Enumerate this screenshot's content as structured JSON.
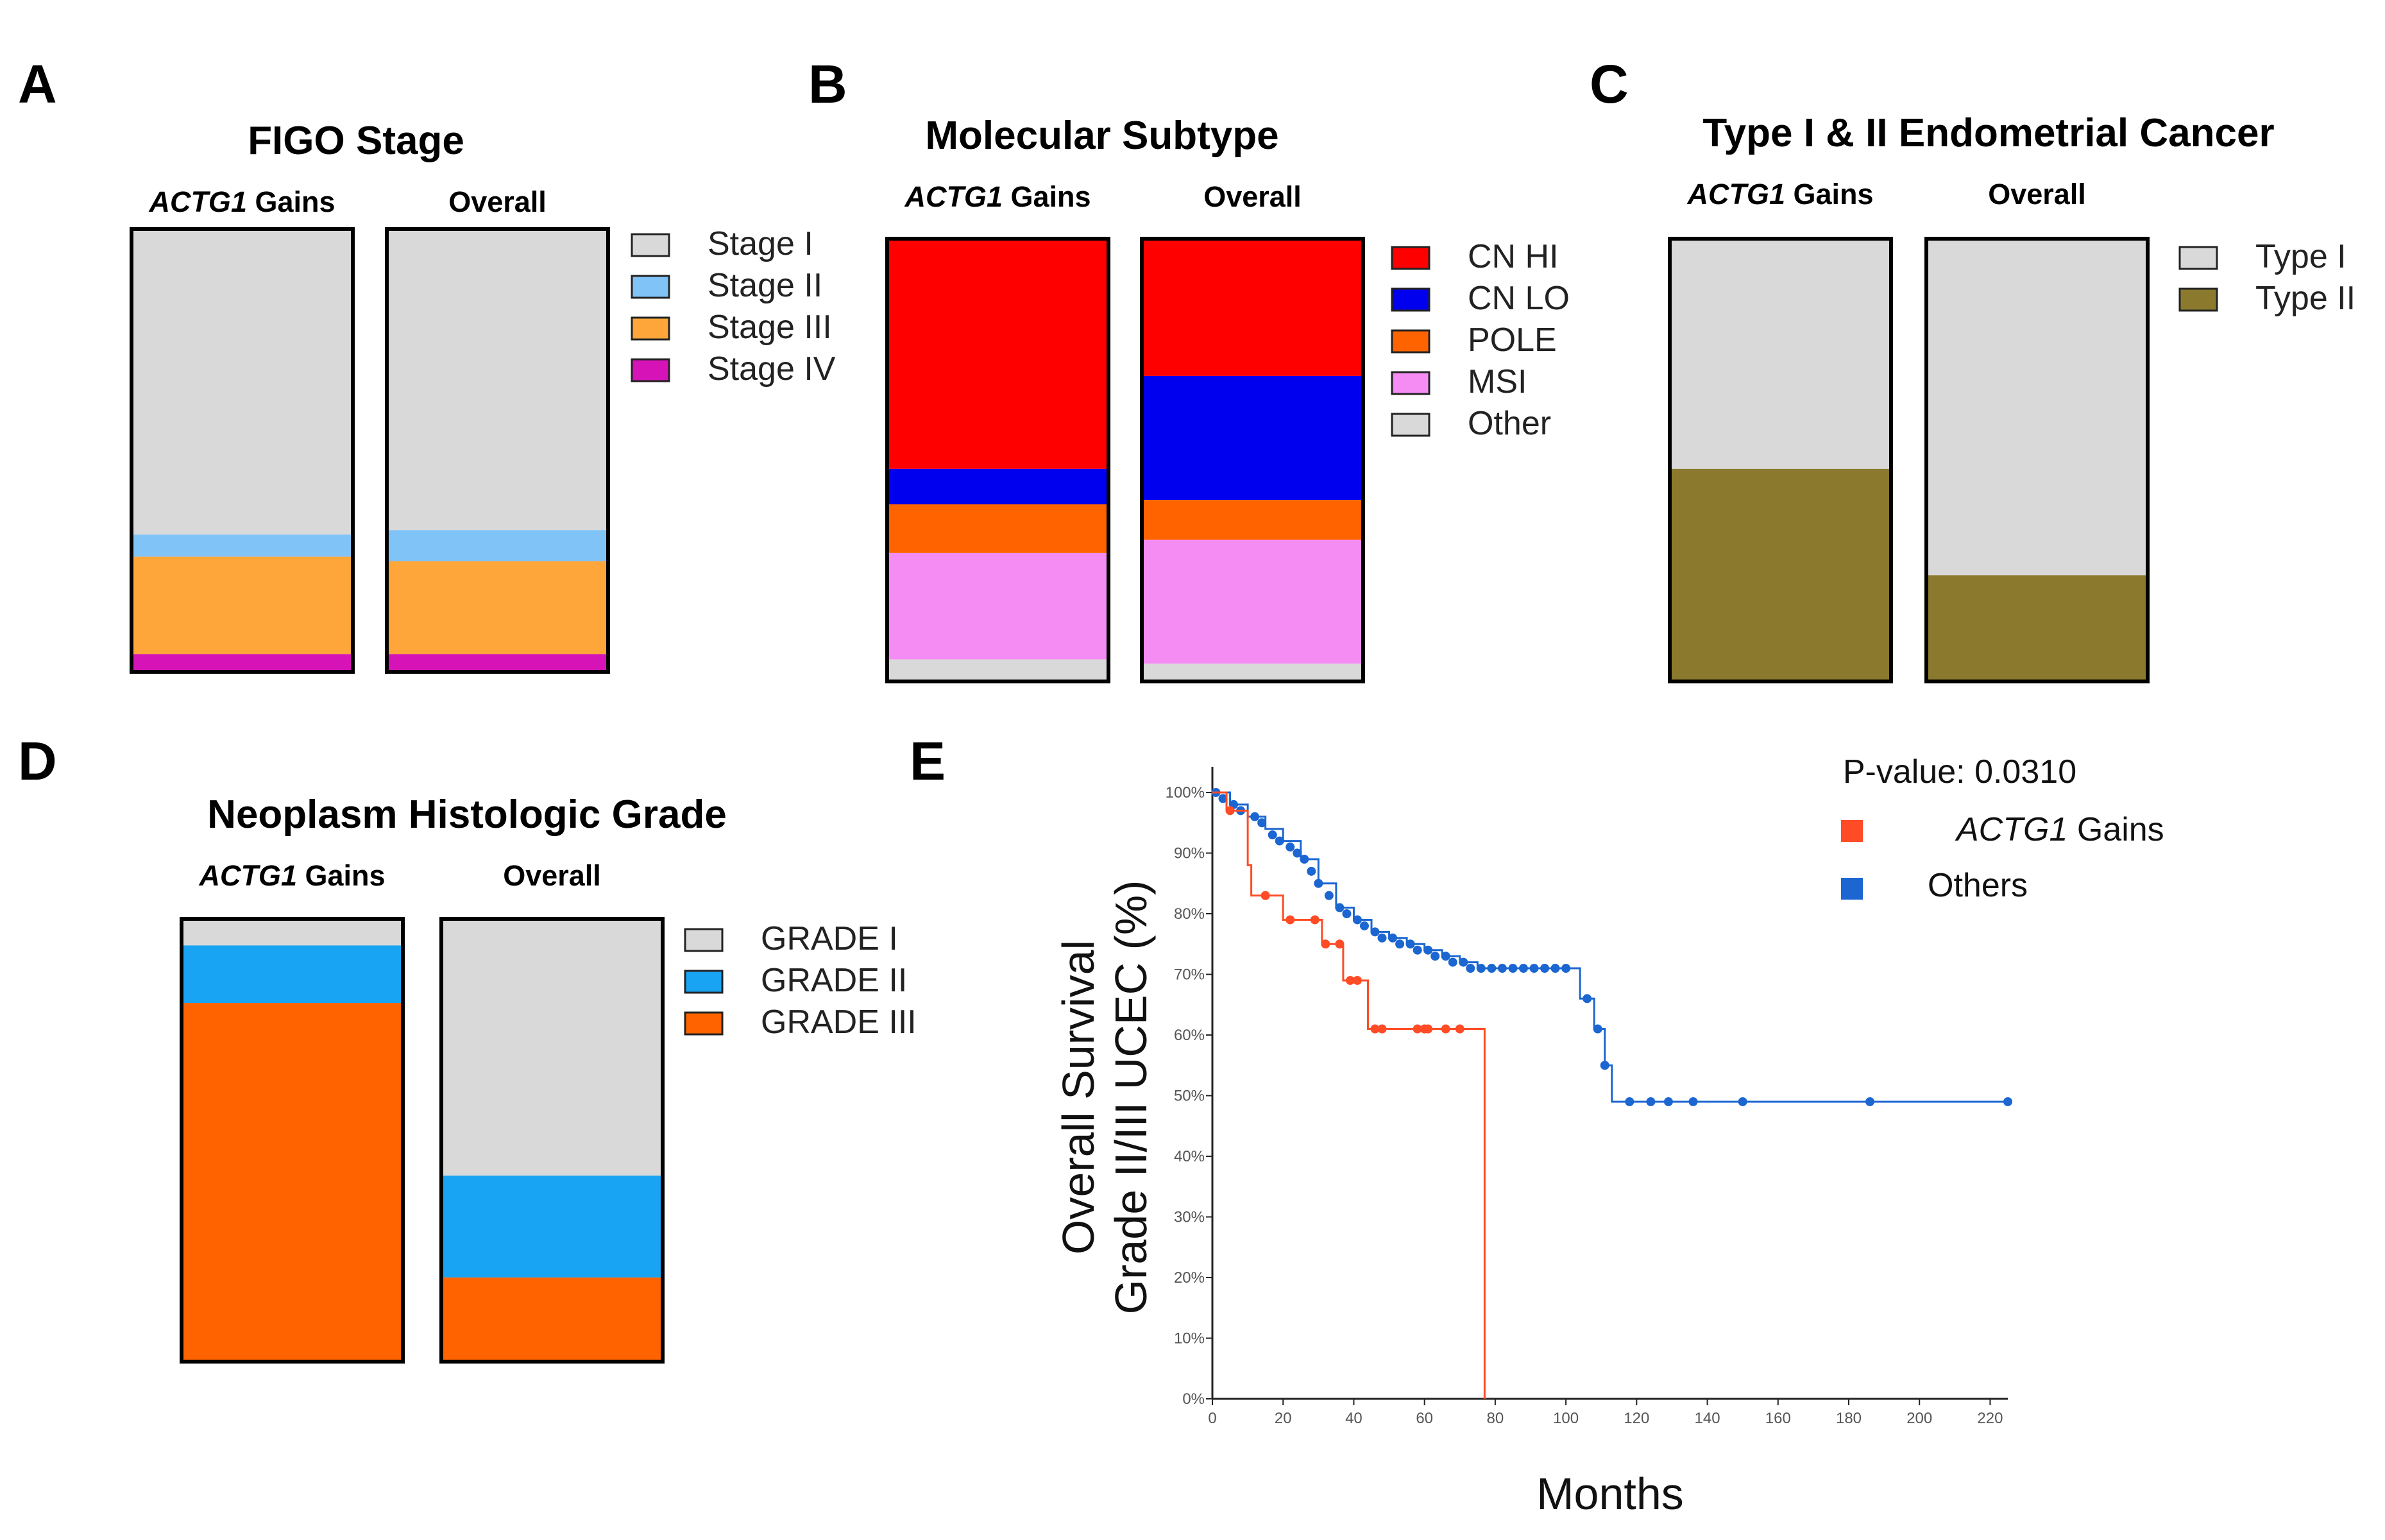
{
  "chart_data": [
    {
      "id": "A",
      "type": "stacked-bar",
      "panel_label": "A",
      "title": "FIGO Stage",
      "column_headers": [
        {
          "italic": "ACTG1",
          "rest": " Gains"
        },
        {
          "italic": "",
          "rest": "Overall"
        }
      ],
      "legend": [
        "Stage I",
        "Stage II",
        "Stage III",
        "Stage IV"
      ],
      "colors": [
        "#d9d9d9",
        "#80c3f7",
        "#ffa63a",
        "#d613b7"
      ],
      "series": [
        {
          "name": "ACTG1 Gains",
          "values": [
            0.69,
            0.05,
            0.22,
            0.04
          ]
        },
        {
          "name": "Overall",
          "values": [
            0.68,
            0.07,
            0.21,
            0.04
          ]
        }
      ]
    },
    {
      "id": "B",
      "type": "stacked-bar",
      "panel_label": "B",
      "title": "Molecular Subtype",
      "column_headers": [
        {
          "italic": "ACTG1",
          "rest": " Gains"
        },
        {
          "italic": "",
          "rest": "Overall"
        }
      ],
      "legend": [
        "CN HI",
        "CN LO",
        "POLE",
        "MSI",
        "Other"
      ],
      "colors": [
        "#ff0000",
        "#0000ee",
        "#ff6300",
        "#f48cf4",
        "#d9d9d9"
      ],
      "series": [
        {
          "name": "ACTG1 Gains",
          "values": [
            0.52,
            0.08,
            0.11,
            0.24,
            0.05
          ]
        },
        {
          "name": "Overall",
          "values": [
            0.31,
            0.28,
            0.09,
            0.28,
            0.04
          ]
        }
      ]
    },
    {
      "id": "C",
      "type": "stacked-bar",
      "panel_label": "C",
      "title": "Type I & II Endometrial Cancer",
      "column_headers": [
        {
          "italic": "ACTG1",
          "rest": " Gains"
        },
        {
          "italic": "",
          "rest": "Overall"
        }
      ],
      "legend": [
        "Type I",
        "Type II"
      ],
      "colors": [
        "#d9d9d9",
        "#8b7a2e"
      ],
      "series": [
        {
          "name": "ACTG1 Gains",
          "values": [
            0.52,
            0.48
          ]
        },
        {
          "name": "Overall",
          "values": [
            0.76,
            0.24
          ]
        }
      ]
    },
    {
      "id": "D",
      "type": "stacked-bar",
      "panel_label": "D",
      "title": "Neoplasm Histologic Grade",
      "column_headers": [
        {
          "italic": "ACTG1",
          "rest": " Gains"
        },
        {
          "italic": "",
          "rest": "Overall"
        }
      ],
      "legend": [
        "GRADE I",
        "GRADE II",
        "GRADE III"
      ],
      "colors": [
        "#d9d9d9",
        "#18a4f2",
        "#ff6300"
      ],
      "series": [
        {
          "name": "ACTG1 Gains",
          "values": [
            0.06,
            0.13,
            0.81
          ]
        },
        {
          "name": "Overall",
          "values": [
            0.58,
            0.23,
            0.19
          ]
        }
      ]
    },
    {
      "id": "E",
      "type": "line",
      "panel_label": "E",
      "subtype": "kaplan-meier",
      "xlabel": "Months",
      "ylabel_line1": "Overall Survival",
      "ylabel_line2": "Grade II/III UCEC (%)",
      "xlim": [
        0,
        225
      ],
      "ylim": [
        0,
        100
      ],
      "xticks": [
        "0",
        "20",
        "40",
        "60",
        "80",
        "100",
        "120",
        "140",
        "160",
        "180",
        "200",
        "220"
      ],
      "yticks": [
        "0%",
        "10%",
        "20%",
        "30%",
        "40%",
        "50%",
        "60%",
        "70%",
        "80%",
        "90%",
        "100%"
      ],
      "pvalue_text": "P-value: 0.0310",
      "legend": [
        {
          "italic": "ACTG1",
          "rest": " Gains",
          "color": "#ff4c26"
        },
        {
          "italic": "",
          "rest": "Others",
          "color": "#1b66d1"
        }
      ],
      "series": [
        {
          "name": "ACTG1 Gains",
          "color": "#ff4c26",
          "steps": [
            [
              0,
              100
            ],
            [
              4,
              97
            ],
            [
              10,
              88
            ],
            [
              11,
              83
            ],
            [
              17,
              83
            ],
            [
              20,
              79
            ],
            [
              28,
              79
            ],
            [
              31,
              75
            ],
            [
              36,
              75
            ],
            [
              37,
              69
            ],
            [
              43,
              69
            ],
            [
              44,
              61
            ],
            [
              77,
              61
            ],
            [
              77,
              0
            ]
          ],
          "censors": [
            [
              5,
              97
            ],
            [
              15,
              83
            ],
            [
              22,
              79
            ],
            [
              29,
              79
            ],
            [
              32,
              75
            ],
            [
              36,
              75
            ],
            [
              39,
              69
            ],
            [
              41,
              69
            ],
            [
              46,
              61
            ],
            [
              48,
              61
            ],
            [
              58,
              61
            ],
            [
              60,
              61
            ],
            [
              61,
              61
            ],
            [
              66,
              61
            ],
            [
              70,
              61
            ]
          ]
        },
        {
          "name": "Others",
          "color": "#1b66d1",
          "steps": [
            [
              0,
              100
            ],
            [
              5,
              98
            ],
            [
              10,
              96
            ],
            [
              15,
              94
            ],
            [
              20,
              92
            ],
            [
              25,
              89
            ],
            [
              30,
              85
            ],
            [
              35,
              81
            ],
            [
              40,
              79
            ],
            [
              45,
              77
            ],
            [
              50,
              76
            ],
            [
              55,
              75
            ],
            [
              60,
              74
            ],
            [
              65,
              73
            ],
            [
              70,
              72
            ],
            [
              75,
              71
            ],
            [
              80,
              71
            ],
            [
              103,
              71
            ],
            [
              104,
              66
            ],
            [
              107,
              66
            ],
            [
              108,
              61
            ],
            [
              110,
              61
            ],
            [
              111,
              55
            ],
            [
              112,
              55
            ],
            [
              113,
              49
            ],
            [
              225,
              49
            ]
          ],
          "censors": [
            [
              1,
              100
            ],
            [
              3,
              99
            ],
            [
              6,
              98
            ],
            [
              8,
              97
            ],
            [
              12,
              96
            ],
            [
              14,
              95
            ],
            [
              17,
              93
            ],
            [
              19,
              92
            ],
            [
              22,
              91
            ],
            [
              24,
              90
            ],
            [
              26,
              89
            ],
            [
              28,
              87
            ],
            [
              30,
              85
            ],
            [
              33,
              83
            ],
            [
              36,
              81
            ],
            [
              38,
              80
            ],
            [
              41,
              79
            ],
            [
              43,
              78
            ],
            [
              46,
              77
            ],
            [
              48,
              76
            ],
            [
              51,
              76
            ],
            [
              53,
              75
            ],
            [
              56,
              75
            ],
            [
              58,
              74
            ],
            [
              61,
              74
            ],
            [
              63,
              73
            ],
            [
              66,
              73
            ],
            [
              68,
              72
            ],
            [
              71,
              72
            ],
            [
              73,
              71
            ],
            [
              76,
              71
            ],
            [
              79,
              71
            ],
            [
              82,
              71
            ],
            [
              85,
              71
            ],
            [
              88,
              71
            ],
            [
              91,
              71
            ],
            [
              94,
              71
            ],
            [
              97,
              71
            ],
            [
              100,
              71
            ],
            [
              106,
              66
            ],
            [
              109,
              61
            ],
            [
              111,
              55
            ],
            [
              118,
              49
            ],
            [
              124,
              49
            ],
            [
              129,
              49
            ],
            [
              136,
              49
            ],
            [
              150,
              49
            ],
            [
              186,
              49
            ],
            [
              225,
              49
            ]
          ]
        }
      ]
    }
  ]
}
